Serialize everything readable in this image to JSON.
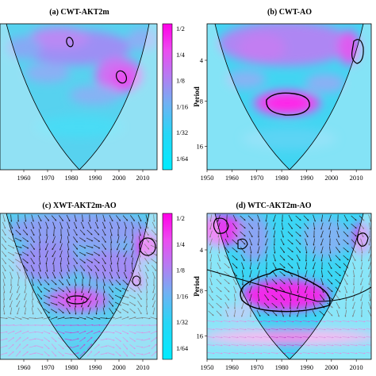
{
  "chart_data": [
    {
      "type": "heatmap",
      "title": "(a) CWT-AKT2m",
      "x_ticks": [
        1960,
        1970,
        1980,
        1990,
        2000,
        2010
      ],
      "xlim": [
        1950,
        2016
      ],
      "colorbar": {
        "labels": [
          "1/2",
          "1/4",
          "1/8",
          "1/16",
          "1/32",
          "1/64"
        ],
        "label": "Period"
      }
    },
    {
      "type": "heatmap",
      "title": "(b) CWT-AO",
      "x_ticks": [
        1950,
        1960,
        1970,
        1980,
        1990,
        2000,
        2010
      ],
      "y_ticks": [
        "4",
        "8",
        "16"
      ],
      "xlim": [
        1950,
        2016
      ]
    },
    {
      "type": "heatmap",
      "title": "(c) XWT-AKT2m-AO",
      "x_ticks": [
        1960,
        1970,
        1980,
        1990,
        2000,
        2010
      ],
      "xlim": [
        1950,
        2016
      ],
      "colorbar": {
        "labels": [
          "1/2",
          "1/4",
          "1/8",
          "1/16",
          "1/32",
          "1/64"
        ],
        "label": "Period"
      }
    },
    {
      "type": "heatmap",
      "title": "(d) WTC-AKT2m-AO",
      "x_ticks": [
        1950,
        1960,
        1970,
        1980,
        1990,
        2000,
        2010
      ],
      "y_ticks": [
        "4",
        "8",
        "16"
      ],
      "xlim": [
        1950,
        2016
      ]
    }
  ]
}
